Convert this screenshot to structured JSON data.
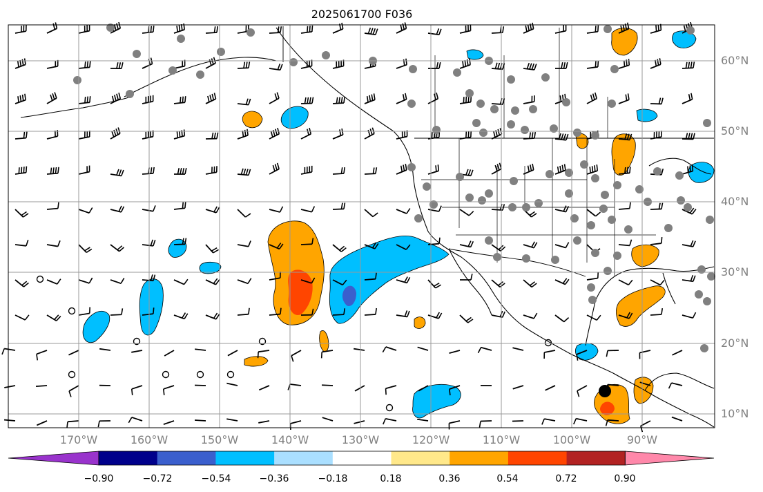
{
  "title": "2025061700 F036",
  "map": {
    "lat_labels": [
      "60°N",
      "50°N",
      "40°N",
      "30°N",
      "20°N",
      "10°N"
    ],
    "lon_labels": [
      "170°W",
      "160°W",
      "150°W",
      "140°W",
      "130°W",
      "120°W",
      "110°W",
      "100°W",
      "90°W"
    ]
  },
  "colorbar": {
    "colors": [
      "#9933cc",
      "#00008b",
      "#3a5fcd",
      "#00bfff",
      "#aadfff",
      "#ffffff",
      "#ffe88a",
      "#ffa500",
      "#ff4500",
      "#b22222",
      "#ff88aa"
    ],
    "tick_labels": [
      "−0.90",
      "−0.72",
      "−0.54",
      "−0.36",
      "−0.18",
      "0.18",
      "0.36",
      "0.54",
      "0.72",
      "0.90"
    ]
  }
}
